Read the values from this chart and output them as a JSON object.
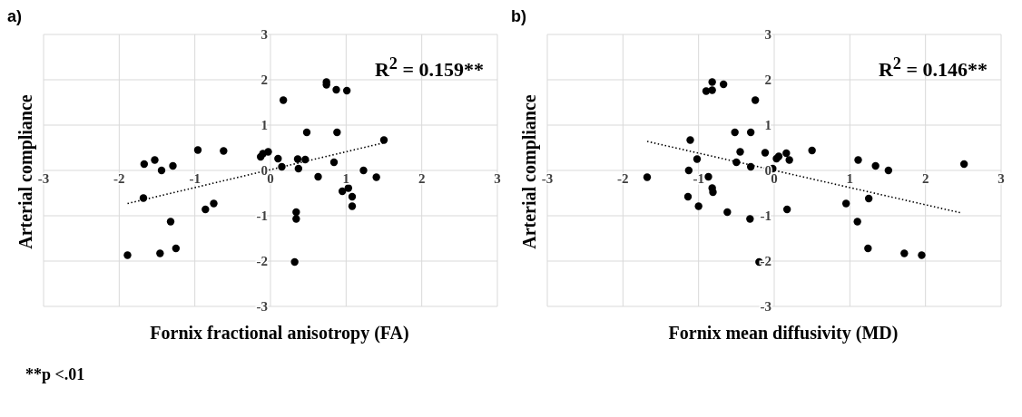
{
  "chart_data": [
    {
      "type": "scatter",
      "title": "a)",
      "xlabel": "Fornix fractional anisotropy (FA)",
      "ylabel": "Arterial compliance",
      "xlim": [
        -3,
        3
      ],
      "ylim": [
        -3,
        3
      ],
      "xticks": [
        -3,
        -2,
        -1,
        0,
        1,
        2,
        3
      ],
      "yticks": [
        -3,
        -2,
        -1,
        0,
        1,
        2,
        3
      ],
      "grid": true,
      "annotations": [
        "R$^{2}$ = 0.159**",
        "**p <.01"
      ],
      "series": [
        {
          "marker": "circle",
          "color": "#000000",
          "x": [
            -1.67,
            -1.53,
            -1.44,
            -1.29,
            -1.68,
            -1.89,
            -1.46,
            -1.25,
            -1.32,
            -0.96,
            -0.62,
            -0.86,
            -0.75,
            -0.13,
            -0.1,
            -0.03,
            0.1,
            0.15,
            0.17,
            0.36,
            0.37,
            0.46,
            0.48,
            0.34,
            0.34,
            0.32,
            0.63,
            0.74,
            0.74,
            0.87,
            1.01,
            0.88,
            0.84,
            0.95,
            1.03,
            1.08,
            1.08,
            1.23,
            1.4,
            1.5
          ],
          "values": [
            0.14,
            0.23,
            0.0,
            0.1,
            -0.61,
            -1.87,
            -1.83,
            -1.72,
            -1.13,
            0.45,
            0.43,
            -0.86,
            -0.73,
            0.3,
            0.37,
            0.41,
            0.26,
            0.08,
            1.55,
            0.25,
            0.04,
            0.24,
            0.84,
            -0.92,
            -1.07,
            -2.02,
            -0.14,
            1.95,
            1.89,
            1.78,
            1.76,
            0.84,
            0.18,
            -0.46,
            -0.39,
            -0.58,
            -0.79,
            0.0,
            -0.15,
            0.67
          ]
        },
        {
          "type": "line",
          "color": "#000000",
          "line_style": "dotted",
          "x": [
            -1.89,
            1.5
          ],
          "values": [
            -0.73,
            0.61
          ]
        }
      ]
    },
    {
      "type": "scatter",
      "title": "b)",
      "xlabel": "Fornix mean diffusivity (MD)",
      "ylabel": "Arterial compliance",
      "xlim": [
        -3,
        3
      ],
      "ylim": [
        -3,
        3
      ],
      "xticks": [
        -3,
        -2,
        -1,
        0,
        1,
        2,
        3
      ],
      "yticks": [
        -3,
        -2,
        -1,
        0,
        1,
        2,
        3
      ],
      "grid": true,
      "annotations": [
        "R$^{2}$ = 0.146**"
      ],
      "series": [
        {
          "marker": "circle",
          "color": "#000000",
          "x": [
            -1.68,
            -1.11,
            -1.02,
            -1.13,
            -1.14,
            -1.0,
            -0.87,
            -0.82,
            -0.81,
            -0.9,
            -0.82,
            -0.82,
            -0.67,
            -0.25,
            -0.52,
            -0.31,
            -0.45,
            -0.5,
            -0.31,
            -0.62,
            -0.32,
            -0.2,
            -0.12,
            -0.02,
            0.03,
            0.06,
            0.16,
            0.2,
            0.17,
            0.5,
            1.11,
            1.34,
            1.51,
            0.95,
            1.25,
            1.1,
            1.24,
            1.72,
            1.95,
            2.51
          ],
          "values": [
            -0.15,
            0.67,
            0.25,
            0.0,
            -0.58,
            -0.79,
            -0.14,
            -0.39,
            -0.48,
            1.75,
            1.77,
            1.95,
            1.9,
            1.55,
            0.84,
            0.84,
            0.41,
            0.18,
            0.08,
            -0.92,
            -1.07,
            -2.02,
            0.39,
            0.04,
            0.26,
            0.31,
            0.38,
            0.23,
            -0.86,
            0.44,
            0.23,
            0.1,
            0.0,
            -0.73,
            -0.62,
            -1.13,
            -1.72,
            -1.83,
            -1.87,
            0.14
          ]
        },
        {
          "type": "line",
          "color": "#000000",
          "line_style": "dotted",
          "x": [
            -1.68,
            2.48
          ],
          "values": [
            0.64,
            -0.94
          ]
        }
      ]
    }
  ]
}
